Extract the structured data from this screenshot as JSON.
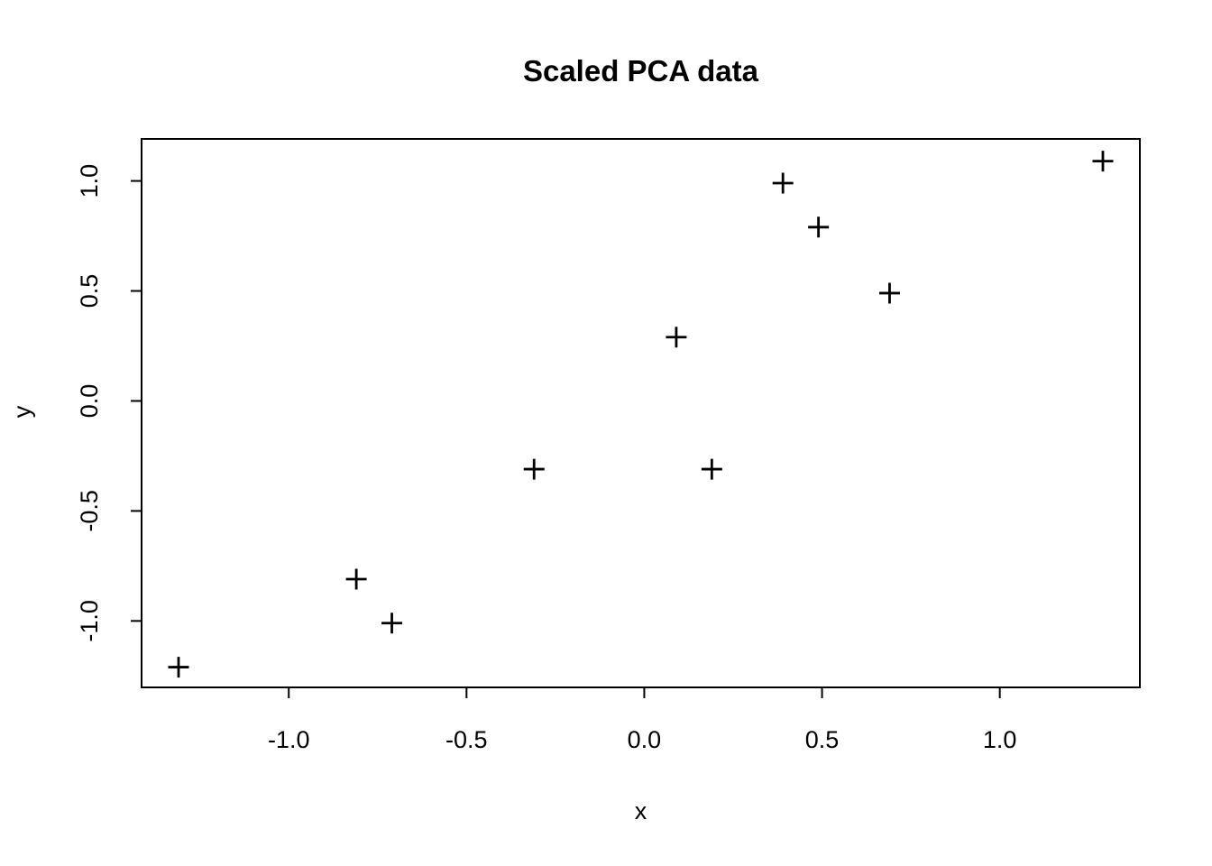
{
  "chart_data": {
    "type": "scatter",
    "title": "Scaled PCA data",
    "xlabel": "x",
    "ylabel": "y",
    "marker_symbol": "+",
    "marker_color": "#000000",
    "background_color": "#ffffff",
    "grid": false,
    "legend": "none",
    "points": [
      {
        "x": 0.69,
        "y": 0.49
      },
      {
        "x": -1.31,
        "y": -1.21
      },
      {
        "x": 0.39,
        "y": 0.99
      },
      {
        "x": 0.09,
        "y": 0.29
      },
      {
        "x": 1.29,
        "y": 1.09
      },
      {
        "x": 0.49,
        "y": 0.79
      },
      {
        "x": 0.19,
        "y": -0.31
      },
      {
        "x": -0.81,
        "y": -0.81
      },
      {
        "x": -0.31,
        "y": -0.31
      },
      {
        "x": -0.71,
        "y": -1.01
      }
    ],
    "x_ticks": [
      -1.0,
      -0.5,
      0.0,
      0.5,
      1.0
    ],
    "x_tick_labels": [
      "-1.0",
      "-0.5",
      "0.0",
      "0.5",
      "1.0"
    ],
    "y_ticks": [
      -1.0,
      -0.5,
      0.0,
      0.5,
      1.0
    ],
    "y_tick_labels": [
      "-1.0",
      "-0.5",
      "0.0",
      "0.5",
      "1.0"
    ],
    "xlim": [
      -1.414,
      1.394
    ],
    "ylim": [
      -1.302,
      1.191
    ]
  }
}
